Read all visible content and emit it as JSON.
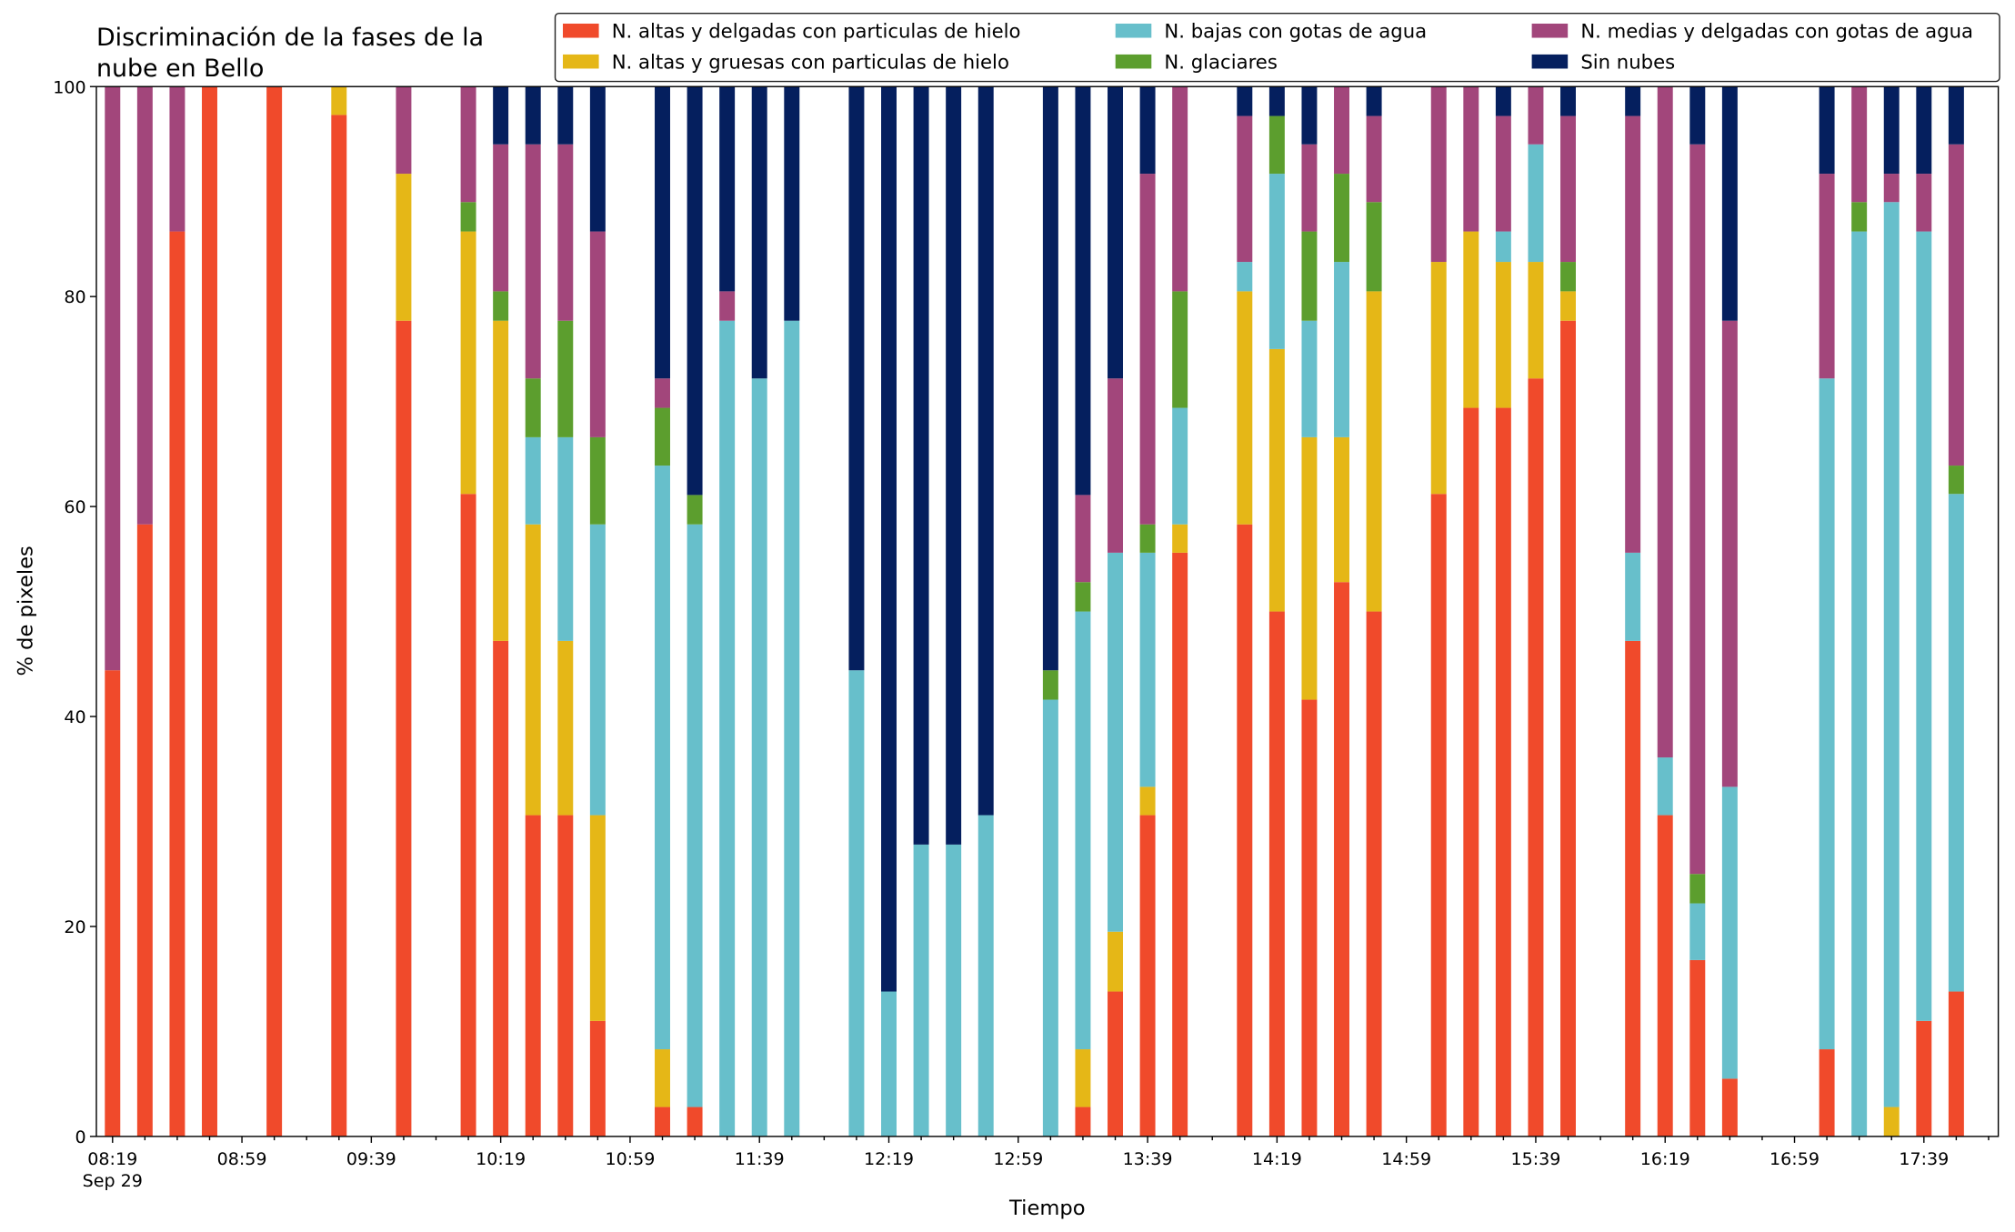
{
  "chart_data": {
    "type": "stacked_bar",
    "title": "Discriminación de la fases de la\nnube en Bello",
    "xlabel": "Tiempo",
    "ylabel": "% de pixeles",
    "x_date_label": "Sep 29",
    "x": [
      "08:19",
      "08:29",
      "08:39",
      "08:49",
      "09:09",
      "09:29",
      "09:49",
      "10:09",
      "10:19",
      "10:29",
      "10:39",
      "10:49",
      "11:09",
      "11:19",
      "11:29",
      "11:39",
      "11:49",
      "12:09",
      "12:19",
      "12:29",
      "12:39",
      "12:49",
      "13:09",
      "13:19",
      "13:29",
      "13:39",
      "13:49",
      "14:09",
      "14:19",
      "14:29",
      "14:39",
      "14:49",
      "15:09",
      "15:19",
      "15:29",
      "15:39",
      "15:49",
      "16:09",
      "16:19",
      "16:29",
      "16:39",
      "17:09",
      "17:19",
      "17:29",
      "17:39",
      "17:49"
    ],
    "xlim": [
      "08:14",
      "18:02"
    ],
    "xticks": [
      "08:19",
      "08:59",
      "09:39",
      "10:19",
      "10:59",
      "11:39",
      "12:19",
      "12:59",
      "13:39",
      "14:19",
      "14:59",
      "15:39",
      "16:19",
      "16:59",
      "17:39"
    ],
    "xminorticks": [
      "08:29",
      "08:39",
      "08:49",
      "09:09",
      "09:19",
      "09:29",
      "09:49",
      "09:59",
      "10:09",
      "10:29",
      "10:39",
      "10:49",
      "11:09",
      "11:19",
      "11:29",
      "11:49",
      "11:59",
      "12:09",
      "12:29",
      "12:39",
      "12:49",
      "13:09",
      "13:19",
      "13:29",
      "13:49",
      "13:59",
      "14:09",
      "14:29",
      "14:39",
      "14:49",
      "15:09",
      "15:19",
      "15:29",
      "15:49",
      "15:59",
      "16:09",
      "16:29",
      "16:39",
      "16:49",
      "17:09",
      "17:19",
      "17:29",
      "17:49",
      "17:59"
    ],
    "ylim": [
      0,
      100
    ],
    "yticks": [
      0,
      20,
      40,
      60,
      80,
      100
    ],
    "legend_position": "top-right",
    "legend_columns": 3,
    "series": [
      {
        "name": "N. altas y delgadas con particulas de hielo",
        "color": "#f04a2b",
        "values": [
          44.4,
          58.3,
          86.2,
          100,
          100,
          97.3,
          77.7,
          61.2,
          47.2,
          30.6,
          30.6,
          11.0,
          2.8,
          2.8,
          0,
          0,
          0,
          0,
          0,
          0,
          0,
          0,
          0,
          2.8,
          13.8,
          30.6,
          55.6,
          58.3,
          50,
          41.6,
          52.8,
          50,
          61.2,
          69.4,
          69.4,
          72.2,
          77.7,
          47.2,
          30.6,
          16.8,
          5.5,
          8.3,
          0,
          0,
          11,
          13.8
        ]
      },
      {
        "name": "N. altas y gruesas con particulas de hielo",
        "color": "#e5b717",
        "values": [
          0,
          0,
          0,
          0,
          0,
          2.7,
          14,
          25,
          30.5,
          27.7,
          16.6,
          19.6,
          5.5,
          0,
          0,
          0,
          0,
          0,
          0,
          0,
          0,
          0,
          0,
          5.5,
          5.7,
          2.7,
          2.7,
          22.2,
          25,
          25,
          13.8,
          30.5,
          22.1,
          16.8,
          13.9,
          11.1,
          2.8,
          0,
          0,
          0,
          0,
          0,
          0,
          2.8,
          0,
          0
        ]
      },
      {
        "name": "N. bajas con gotas de agua",
        "color": "#67bfcb",
        "values": [
          0,
          0,
          0,
          0,
          0,
          0,
          0,
          0,
          0,
          8.3,
          19.4,
          27.7,
          55.6,
          55.5,
          77.7,
          72.2,
          77.7,
          44.4,
          13.8,
          27.8,
          27.8,
          30.6,
          41.6,
          41.7,
          36.1,
          22.3,
          11.1,
          2.8,
          16.7,
          11.1,
          16.7,
          0,
          0,
          0,
          2.9,
          11.2,
          0,
          8.4,
          5.5,
          5.4,
          27.8,
          63.9,
          86.2,
          86.2,
          75.2,
          47.4
        ]
      },
      {
        "name": "N. glaciares",
        "color": "#5c9e2e",
        "values": [
          0,
          0,
          0,
          0,
          0,
          0,
          0,
          2.8,
          2.8,
          5.6,
          11.1,
          8.3,
          5.5,
          2.8,
          0,
          0,
          0,
          0,
          0,
          0,
          0,
          0,
          2.8,
          2.8,
          0,
          2.7,
          11.1,
          0,
          5.5,
          8.5,
          8.4,
          8.5,
          0,
          0,
          0,
          0,
          2.8,
          0,
          0,
          2.8,
          0,
          0,
          2.8,
          0,
          0,
          2.7
        ]
      },
      {
        "name": "N. medias y delgadas con gotas de agua",
        "color": "#a2467b",
        "values": [
          55.6,
          41.7,
          13.8,
          0,
          0,
          0,
          8.3,
          11,
          14,
          22.3,
          16.8,
          19.6,
          2.8,
          0,
          2.8,
          0,
          0,
          0,
          0,
          0,
          0,
          0,
          0,
          8.3,
          16.6,
          33.4,
          19.5,
          13.9,
          0,
          8.3,
          8.3,
          8.2,
          16.7,
          13.8,
          11,
          5.5,
          13.9,
          41.6,
          63.9,
          69.5,
          44.4,
          19.5,
          11,
          2.7,
          5.5,
          30.6
        ]
      },
      {
        "name": "Sin nubes",
        "color": "#051f5e",
        "values": [
          0,
          0,
          0,
          0,
          0,
          0,
          0,
          0,
          5.5,
          5.5,
          5.5,
          13.8,
          27.8,
          38.9,
          19.5,
          27.8,
          22.3,
          55.6,
          86.2,
          72.2,
          72.2,
          69.4,
          55.6,
          38.9,
          27.8,
          8.3,
          0,
          2.8,
          2.8,
          5.5,
          0,
          2.8,
          0,
          0,
          2.8,
          0,
          2.8,
          2.8,
          0,
          5.5,
          22.3,
          8.3,
          0,
          8.3,
          8.3,
          5.5
        ]
      }
    ]
  }
}
